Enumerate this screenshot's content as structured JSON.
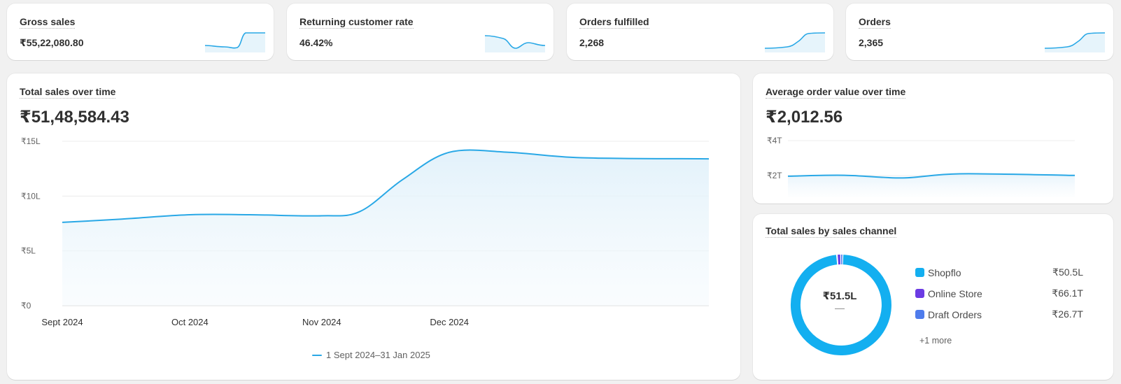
{
  "kpis": {
    "gross_sales": {
      "label": "Gross sales",
      "value": "₹55,22,080.80"
    },
    "returning_rate": {
      "label": "Returning customer rate",
      "value": "46.42%"
    },
    "orders_fulfilled": {
      "label": "Orders fulfilled",
      "value": "2,268"
    },
    "orders": {
      "label": "Orders",
      "value": "2,365"
    }
  },
  "sales_over_time": {
    "title": "Total sales over time",
    "value": "₹51,48,584.43",
    "legend": "1 Sept 2024–31 Jan 2025"
  },
  "aov_over_time": {
    "title": "Average order value over time",
    "value": "₹2,012.56"
  },
  "sales_by_channel": {
    "title": "Total sales by sales channel",
    "center_value": "₹51.5L",
    "center_sub": "—",
    "channels": [
      {
        "name": "Shopflo",
        "value": "₹50.5L",
        "color": "#13aff0"
      },
      {
        "name": "Online Store",
        "value": "₹66.1T",
        "color": "#6b3be3"
      },
      {
        "name": "Draft Orders",
        "value": "₹26.7T",
        "color": "#4f7cec"
      }
    ],
    "more": "+1 more"
  },
  "colors": {
    "line": "#29a8e6",
    "accent_fill": "#e6f4fb"
  },
  "chart_data": [
    {
      "type": "area",
      "title": "Total sales over time",
      "y_tick_labels": [
        "₹0",
        "₹5L",
        "₹10L",
        "₹15L"
      ],
      "x_tick_labels": [
        "Sept 2024",
        "Oct 2024",
        "Nov 2024",
        "Dec 2024"
      ],
      "ylim": [
        0,
        1500000
      ],
      "series": [
        {
          "name": "1 Sept 2024–31 Jan 2025",
          "points": [
            {
              "x": "2024-09-01",
              "y": 760000
            },
            {
              "x": "2024-09-15",
              "y": 790000
            },
            {
              "x": "2024-10-01",
              "y": 830000
            },
            {
              "x": "2024-10-15",
              "y": 830000
            },
            {
              "x": "2024-11-01",
              "y": 820000
            },
            {
              "x": "2024-11-10",
              "y": 860000
            },
            {
              "x": "2024-11-20",
              "y": 1150000
            },
            {
              "x": "2024-12-01",
              "y": 1400000
            },
            {
              "x": "2024-12-15",
              "y": 1400000
            },
            {
              "x": "2025-01-01",
              "y": 1350000
            },
            {
              "x": "2025-01-31",
              "y": 1340000
            }
          ]
        }
      ],
      "grid": true
    },
    {
      "type": "area",
      "title": "Average order value over time",
      "y_tick_labels": [
        "₹2T",
        "₹4T"
      ],
      "ylim": [
        0,
        4000
      ],
      "series": [
        {
          "points": [
            {
              "x": "2024-09-01",
              "y": 1960
            },
            {
              "x": "2024-10-01",
              "y": 2020
            },
            {
              "x": "2024-11-01",
              "y": 1850
            },
            {
              "x": "2024-12-01",
              "y": 2110
            },
            {
              "x": "2025-01-31",
              "y": 2010
            }
          ]
        }
      ],
      "grid": true
    },
    {
      "type": "pie",
      "title": "Total sales by sales channel",
      "labels": [
        "Shopflo",
        "Online Store",
        "Draft Orders"
      ],
      "values": [
        5050000,
        66100,
        26700
      ]
    }
  ]
}
